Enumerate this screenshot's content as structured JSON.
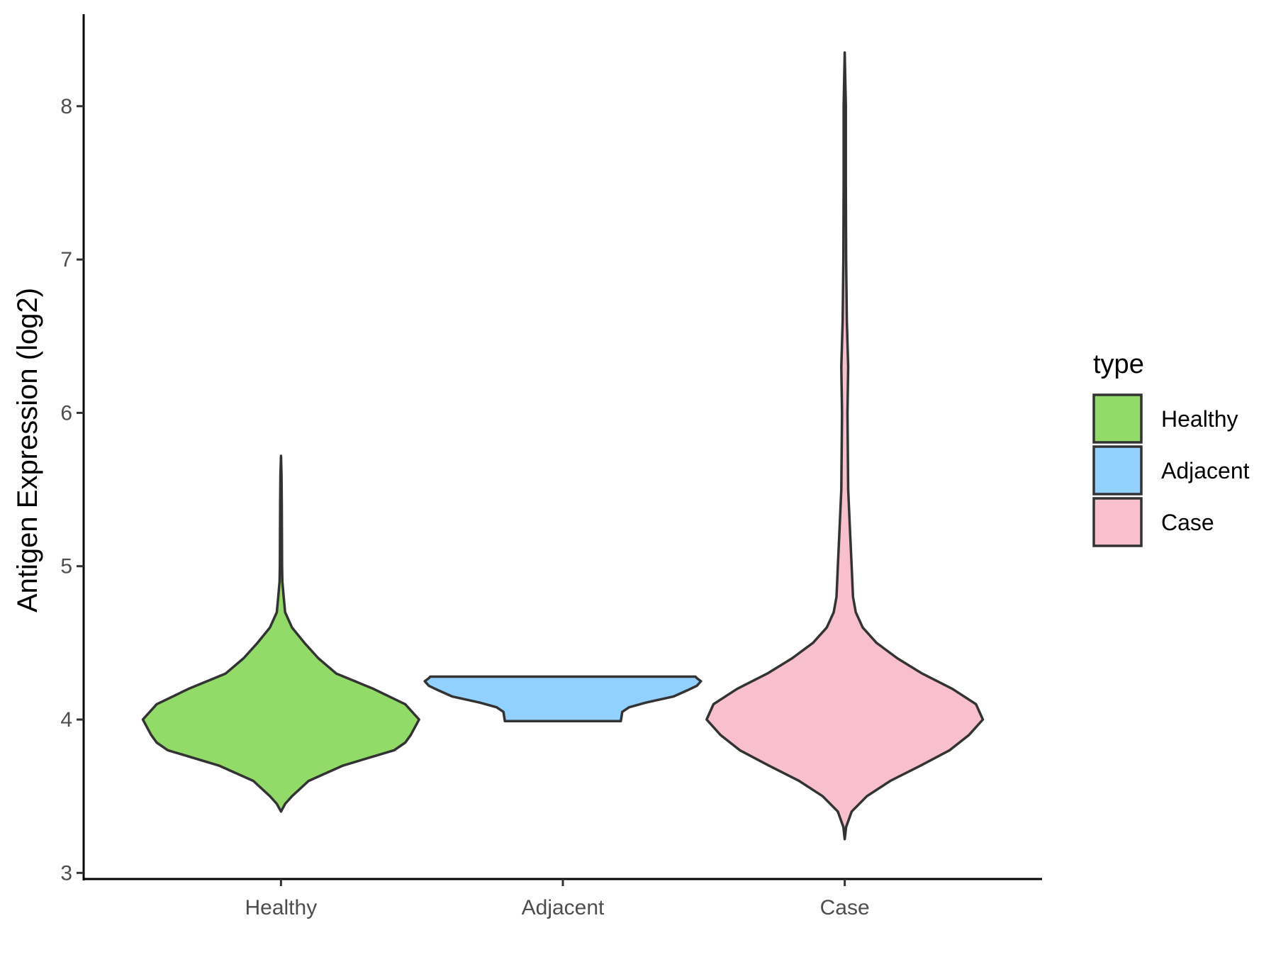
{
  "chart_data": {
    "type": "violin",
    "ylabel": "Antigen Expression (log2)",
    "xlabel": "",
    "ylim": [
      2.96,
      8.6
    ],
    "yticks": [
      3,
      4,
      5,
      6,
      7,
      8
    ],
    "categories": [
      "Healthy",
      "Adjacent",
      "Case"
    ],
    "grid": false,
    "legend": {
      "title": "type",
      "position": "right",
      "entries": [
        "Healthy",
        "Adjacent",
        "Case"
      ]
    },
    "series": [
      {
        "name": "Healthy",
        "color": "#93DB68",
        "profile": [
          [
            3.4,
            0.0
          ],
          [
            3.45,
            0.03
          ],
          [
            3.5,
            0.08
          ],
          [
            3.6,
            0.2
          ],
          [
            3.7,
            0.45
          ],
          [
            3.8,
            0.82
          ],
          [
            3.85,
            0.9
          ],
          [
            3.9,
            0.94
          ],
          [
            4.0,
            1.0
          ],
          [
            4.1,
            0.9
          ],
          [
            4.2,
            0.67
          ],
          [
            4.3,
            0.4
          ],
          [
            4.4,
            0.27
          ],
          [
            4.5,
            0.17
          ],
          [
            4.6,
            0.08
          ],
          [
            4.7,
            0.03
          ],
          [
            4.8,
            0.02
          ],
          [
            4.9,
            0.01
          ],
          [
            5.0,
            0.008
          ],
          [
            5.2,
            0.007
          ],
          [
            5.4,
            0.006
          ],
          [
            5.6,
            0.004
          ],
          [
            5.72,
            0.0
          ]
        ]
      },
      {
        "name": "Adjacent",
        "color": "#92D1FF",
        "profile": [
          [
            3.99,
            0.42
          ],
          [
            4.05,
            0.43
          ],
          [
            4.08,
            0.48
          ],
          [
            4.11,
            0.6
          ],
          [
            4.15,
            0.8
          ],
          [
            4.19,
            0.9
          ],
          [
            4.22,
            0.97
          ],
          [
            4.25,
            1.0
          ],
          [
            4.27,
            0.97
          ],
          [
            4.28,
            0.96
          ]
        ]
      },
      {
        "name": "Case",
        "color": "#F7C0CC",
        "profile": [
          [
            3.22,
            0.0
          ],
          [
            3.3,
            0.01
          ],
          [
            3.4,
            0.05
          ],
          [
            3.5,
            0.16
          ],
          [
            3.6,
            0.33
          ],
          [
            3.7,
            0.55
          ],
          [
            3.8,
            0.76
          ],
          [
            3.9,
            0.9
          ],
          [
            4.0,
            1.0
          ],
          [
            4.1,
            0.95
          ],
          [
            4.2,
            0.78
          ],
          [
            4.3,
            0.56
          ],
          [
            4.4,
            0.38
          ],
          [
            4.5,
            0.23
          ],
          [
            4.6,
            0.13
          ],
          [
            4.7,
            0.08
          ],
          [
            4.8,
            0.06
          ],
          [
            5.0,
            0.05
          ],
          [
            5.2,
            0.04
          ],
          [
            5.5,
            0.025
          ],
          [
            6.0,
            0.02
          ],
          [
            6.3,
            0.025
          ],
          [
            6.6,
            0.015
          ],
          [
            7.0,
            0.01
          ],
          [
            7.5,
            0.008
          ],
          [
            8.0,
            0.008
          ],
          [
            8.35,
            0.0
          ]
        ]
      }
    ]
  }
}
